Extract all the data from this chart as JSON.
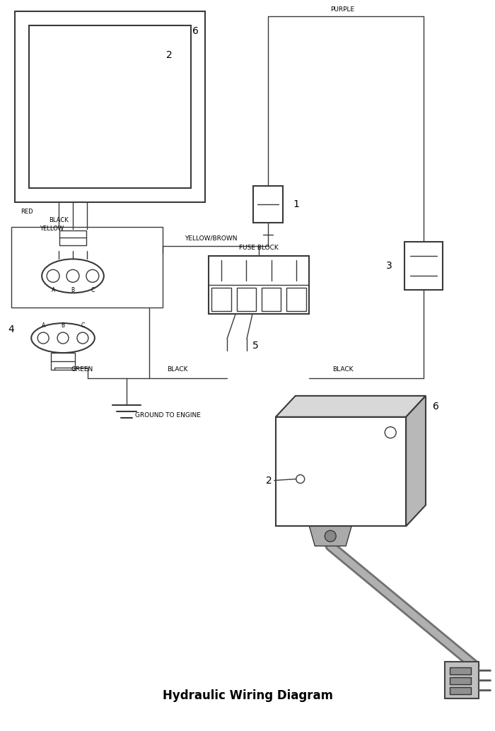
{
  "title": "Hydraulic Wiring Diagram",
  "bg_color": "#ffffff",
  "line_color": "#3a3a3a",
  "wire_labels": {
    "red": "RED",
    "black1": "BLACK",
    "yellow": "YELLOW",
    "purple": "PURPLE",
    "yellow_brown": "YELLOW/BROWN",
    "green": "GREEN",
    "black2": "BLACK",
    "black3": "BLACK",
    "ground": "GROUND TO ENGINE"
  },
  "component_labels": {
    "top_outer": "6",
    "top_inner": "2",
    "relay": "1",
    "switch": "3",
    "fuse": "FUSE BLOCK",
    "fuse_arrow": "5",
    "bottom_outer": "6",
    "bottom_inner": "2",
    "connector4": "4"
  }
}
